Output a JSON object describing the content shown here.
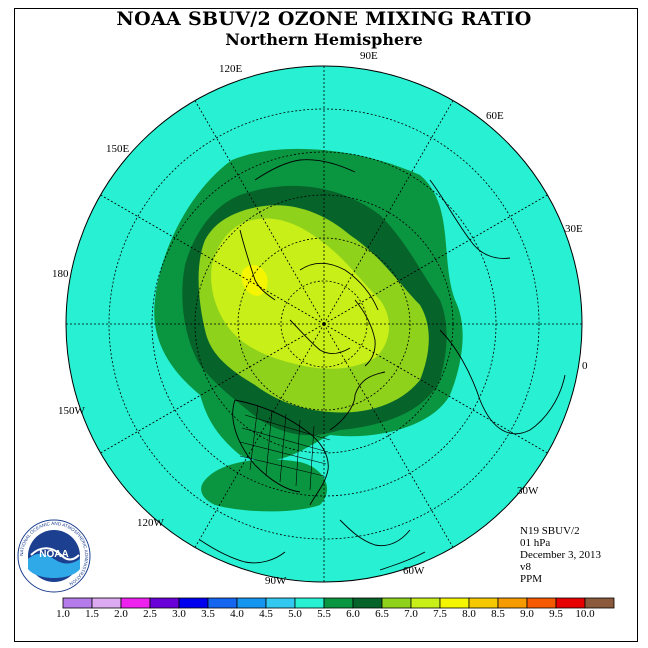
{
  "title": "NOAA SBUV/2 OZONE MIXING RATIO",
  "subtitle": "Northern Hemisphere",
  "longitude_labels": {
    "e90": "90E",
    "e60": "60E",
    "e30": "30E",
    "zero": "0",
    "w30": "30W",
    "w60": "60W",
    "w90": "90W",
    "w120": "120W",
    "w150": "150W",
    "d180": "180",
    "e150": "150E",
    "e120": "120E"
  },
  "info": {
    "instrument": "N19 SBUV/2",
    "pressure": "01 hPa",
    "date": "December 3, 2013",
    "version": "v8",
    "units": "PPM"
  },
  "colorbar": {
    "ticks": [
      "1.0",
      "1.5",
      "2.0",
      "2.5",
      "3.0",
      "3.5",
      "4.0",
      "4.5",
      "5.0",
      "5.5",
      "6.0",
      "6.5",
      "7.0",
      "7.5",
      "8.0",
      "8.5",
      "9.0",
      "9.5",
      "10.0"
    ],
    "colors": [
      "#b57bea",
      "#dcaaf0",
      "#ee22ee",
      "#6a00d8",
      "#0000ee",
      "#1466f0",
      "#1496f0",
      "#32c8f0",
      "#28f0d2",
      "#0a9640",
      "#06642a",
      "#8fd21c",
      "#c8f018",
      "#f5f500",
      "#f5c800",
      "#f59b00",
      "#f55a00",
      "#e60000",
      "#8b5a3c"
    ]
  },
  "map_colors": {
    "background": "#28f0d2",
    "band_55": "#0a9640",
    "band_60": "#06642a",
    "band_65": "#8fd21c",
    "band_70": "#c8f018",
    "band_75": "#f5f500"
  },
  "logo": {
    "text": "NOAA",
    "ring_text": "NATIONAL OCEANIC AND ATMOSPHERIC ADMINISTRATION"
  }
}
